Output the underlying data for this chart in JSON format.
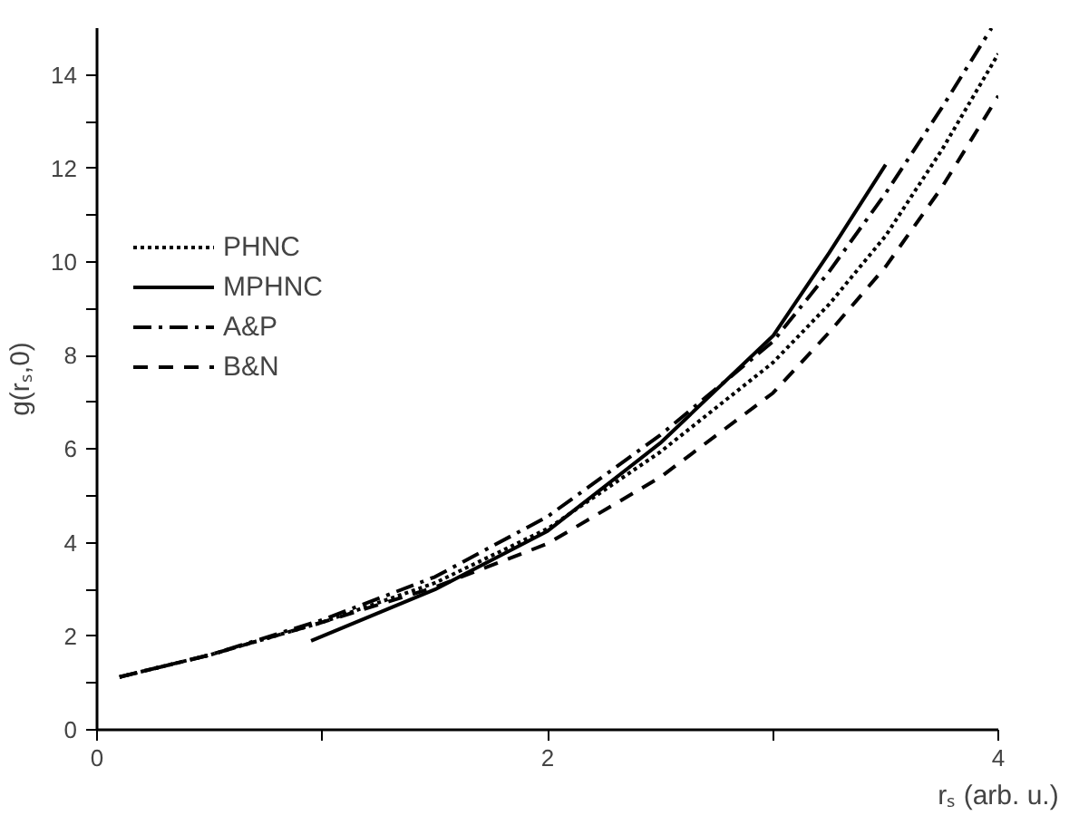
{
  "chart_data": {
    "type": "line",
    "xlabel": "rₛ (arb. u.)",
    "ylabel": "g(rₛ,0)",
    "xlim": [
      0,
      4
    ],
    "ylim": [
      0,
      15
    ],
    "xticks": [
      0,
      {
        "value": 1,
        "label": null
      },
      2,
      {
        "value": 3,
        "label": null
      },
      4
    ],
    "yticks": [
      0,
      {
        "value": 1,
        "label": null
      },
      2,
      {
        "value": 3,
        "label": null
      },
      4,
      {
        "value": 5,
        "label": null
      },
      6,
      {
        "value": 7,
        "label": null
      },
      8,
      {
        "value": 9,
        "label": null
      },
      10,
      {
        "value": 11,
        "label": null
      },
      12,
      {
        "value": 13,
        "label": null
      },
      14
    ],
    "grid": false,
    "legend": "top left",
    "marker": "none",
    "series": [
      {
        "name": "PHNC",
        "color": "#000000",
        "line_style": "dotted",
        "x": [
          0.1,
          0.5,
          1,
          1.5,
          2,
          2.5,
          3,
          3.25,
          3.5,
          3.75,
          4
        ],
        "values": [
          1.13,
          1.6,
          2.3,
          3.14,
          4.3,
          5.94,
          7.85,
          9.1,
          10.56,
          12.4,
          14.45
        ]
      },
      {
        "name": "MPHNC",
        "color": "#000000",
        "line_style": "solid",
        "x": [
          0.95,
          1.5,
          2,
          2.5,
          3,
          3.25,
          3.5
        ],
        "values": [
          1.9,
          3.0,
          4.25,
          6.13,
          8.42,
          10.2,
          12.08
        ]
      },
      {
        "name": "A&P",
        "color": "#000000",
        "line_style": "dashdot",
        "x": [
          0.1,
          0.5,
          1,
          1.5,
          2,
          2.5,
          3,
          3.25,
          3.5,
          3.75,
          3.97
        ],
        "values": [
          1.13,
          1.6,
          2.35,
          3.27,
          4.56,
          6.3,
          8.3,
          9.8,
          11.47,
          13.3,
          15.0
        ]
      },
      {
        "name": "B&N",
        "color": "#000000",
        "line_style": "dashed",
        "x": [
          0.1,
          0.5,
          1,
          1.5,
          2,
          2.5,
          3,
          3.25,
          3.5,
          3.75,
          4
        ],
        "values": [
          1.13,
          1.6,
          2.3,
          3.05,
          3.98,
          5.4,
          7.2,
          8.5,
          9.9,
          11.6,
          13.55
        ]
      }
    ]
  }
}
